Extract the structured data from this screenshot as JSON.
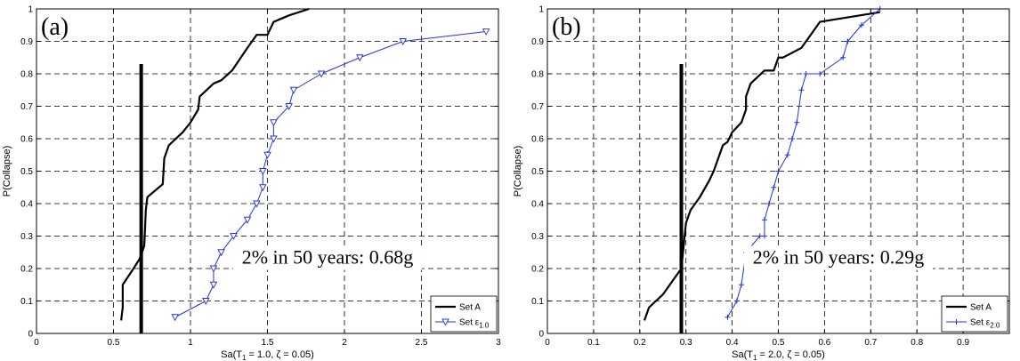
{
  "chart_data": [
    {
      "type": "line",
      "panel_label": "(a)",
      "xlabel": "Sa(T",
      "xlabel_sub": "1",
      "xlabel_rest": " = 1.0, ζ = 0.05)",
      "ylabel": "P(Collapse)",
      "xlim": [
        0,
        3
      ],
      "ylim": [
        0,
        1
      ],
      "xticks": [
        0,
        0.5,
        1,
        1.5,
        2,
        2.5,
        3
      ],
      "xtick_labels": [
        "0",
        "0.5",
        "1",
        "1.5",
        "2",
        "2.5",
        "3"
      ],
      "yticks": [
        0,
        0.1,
        0.2,
        0.3,
        0.4,
        0.5,
        0.6,
        0.7,
        0.8,
        0.9,
        1
      ],
      "ytick_labels": [
        "0",
        "0.1",
        "0.2",
        "0.3",
        "0.4",
        "0.5",
        "0.6",
        "0.7",
        "0.8",
        "0.9",
        "1"
      ],
      "grid": true,
      "annotation": "2% in 50 years: 0.68g",
      "vertical_line": {
        "x": 0.68,
        "y": [
          0,
          0.83
        ]
      },
      "legend_position": "bottom-right",
      "series": [
        {
          "name": "Set A",
          "color": "#000000",
          "marker": "none",
          "x": [
            0.55,
            0.56,
            0.56,
            0.63,
            0.67,
            0.7,
            0.71,
            0.72,
            0.82,
            0.83,
            0.86,
            0.95,
            1.0,
            1.05,
            1.06,
            1.15,
            1.2,
            1.27,
            1.37,
            1.43,
            1.5,
            1.54,
            1.64,
            1.77
          ],
          "y": [
            0.04,
            0.08,
            0.15,
            0.2,
            0.23,
            0.27,
            0.38,
            0.42,
            0.46,
            0.54,
            0.58,
            0.62,
            0.65,
            0.69,
            0.73,
            0.77,
            0.78,
            0.81,
            0.88,
            0.92,
            0.92,
            0.96,
            0.98,
            1.0
          ]
        },
        {
          "name": "Set ε",
          "name_sub": "1.0",
          "color": "#2233dd",
          "marker": "triangle-down",
          "x": [
            0.9,
            1.1,
            1.15,
            1.15,
            1.2,
            1.28,
            1.37,
            1.43,
            1.47,
            1.47,
            1.5,
            1.54,
            1.54,
            1.64,
            1.67,
            1.85,
            2.1,
            2.38,
            2.92
          ],
          "y": [
            0.05,
            0.1,
            0.15,
            0.2,
            0.25,
            0.3,
            0.35,
            0.4,
            0.45,
            0.5,
            0.55,
            0.6,
            0.65,
            0.7,
            0.75,
            0.8,
            0.85,
            0.9,
            0.93
          ]
        }
      ]
    },
    {
      "type": "line",
      "panel_label": "(b)",
      "xlabel": "Sa(T",
      "xlabel_sub": "1",
      "xlabel_rest": " = 2.0, ζ = 0.05)",
      "ylabel": "P(Collapse)",
      "xlim": [
        0,
        1
      ],
      "ylim": [
        0,
        1
      ],
      "xticks": [
        0,
        0.1,
        0.2,
        0.3,
        0.4,
        0.5,
        0.6,
        0.7,
        0.8,
        0.9
      ],
      "xtick_labels": [
        "0",
        "0.1",
        "0.2",
        "0.3",
        "0.4",
        "0.5",
        "0.6",
        "0.7",
        "0.8",
        "0.9"
      ],
      "yticks": [
        0,
        0.1,
        0.2,
        0.3,
        0.4,
        0.5,
        0.6,
        0.7,
        0.8,
        0.9,
        1
      ],
      "ytick_labels": [
        "0",
        "0.1",
        "0.2",
        "0.3",
        "0.4",
        "0.5",
        "0.6",
        "0.7",
        "0.8",
        "0.9",
        "1"
      ],
      "grid": true,
      "annotation": "2% in 50 years: 0.29g",
      "vertical_line": {
        "x": 0.29,
        "y": [
          0,
          0.83
        ]
      },
      "legend_position": "bottom-right",
      "series": [
        {
          "name": "Set A",
          "color": "#000000",
          "marker": "none",
          "x": [
            0.21,
            0.22,
            0.25,
            0.27,
            0.29,
            0.3,
            0.31,
            0.33,
            0.35,
            0.36,
            0.37,
            0.38,
            0.39,
            0.4,
            0.42,
            0.43,
            0.43,
            0.44,
            0.47,
            0.49,
            0.5,
            0.51,
            0.55,
            0.57,
            0.59,
            0.72
          ],
          "y": [
            0.04,
            0.08,
            0.12,
            0.16,
            0.2,
            0.34,
            0.38,
            0.42,
            0.47,
            0.5,
            0.54,
            0.58,
            0.59,
            0.62,
            0.65,
            0.69,
            0.73,
            0.77,
            0.81,
            0.81,
            0.85,
            0.85,
            0.88,
            0.92,
            0.96,
            0.99
          ]
        },
        {
          "name": "Set ε",
          "name_sub": "2.0",
          "color": "#2233dd",
          "marker": "plus",
          "x": [
            0.39,
            0.41,
            0.42,
            0.43,
            0.46,
            0.47,
            0.47,
            0.48,
            0.49,
            0.5,
            0.52,
            0.53,
            0.54,
            0.55,
            0.56,
            0.59,
            0.64,
            0.65,
            0.65,
            0.68,
            0.72
          ],
          "y": [
            0.05,
            0.1,
            0.15,
            0.25,
            0.3,
            0.3,
            0.35,
            0.4,
            0.45,
            0.5,
            0.55,
            0.6,
            0.65,
            0.75,
            0.8,
            0.8,
            0.85,
            0.9,
            0.9,
            0.95,
            1.0
          ]
        }
      ]
    }
  ]
}
